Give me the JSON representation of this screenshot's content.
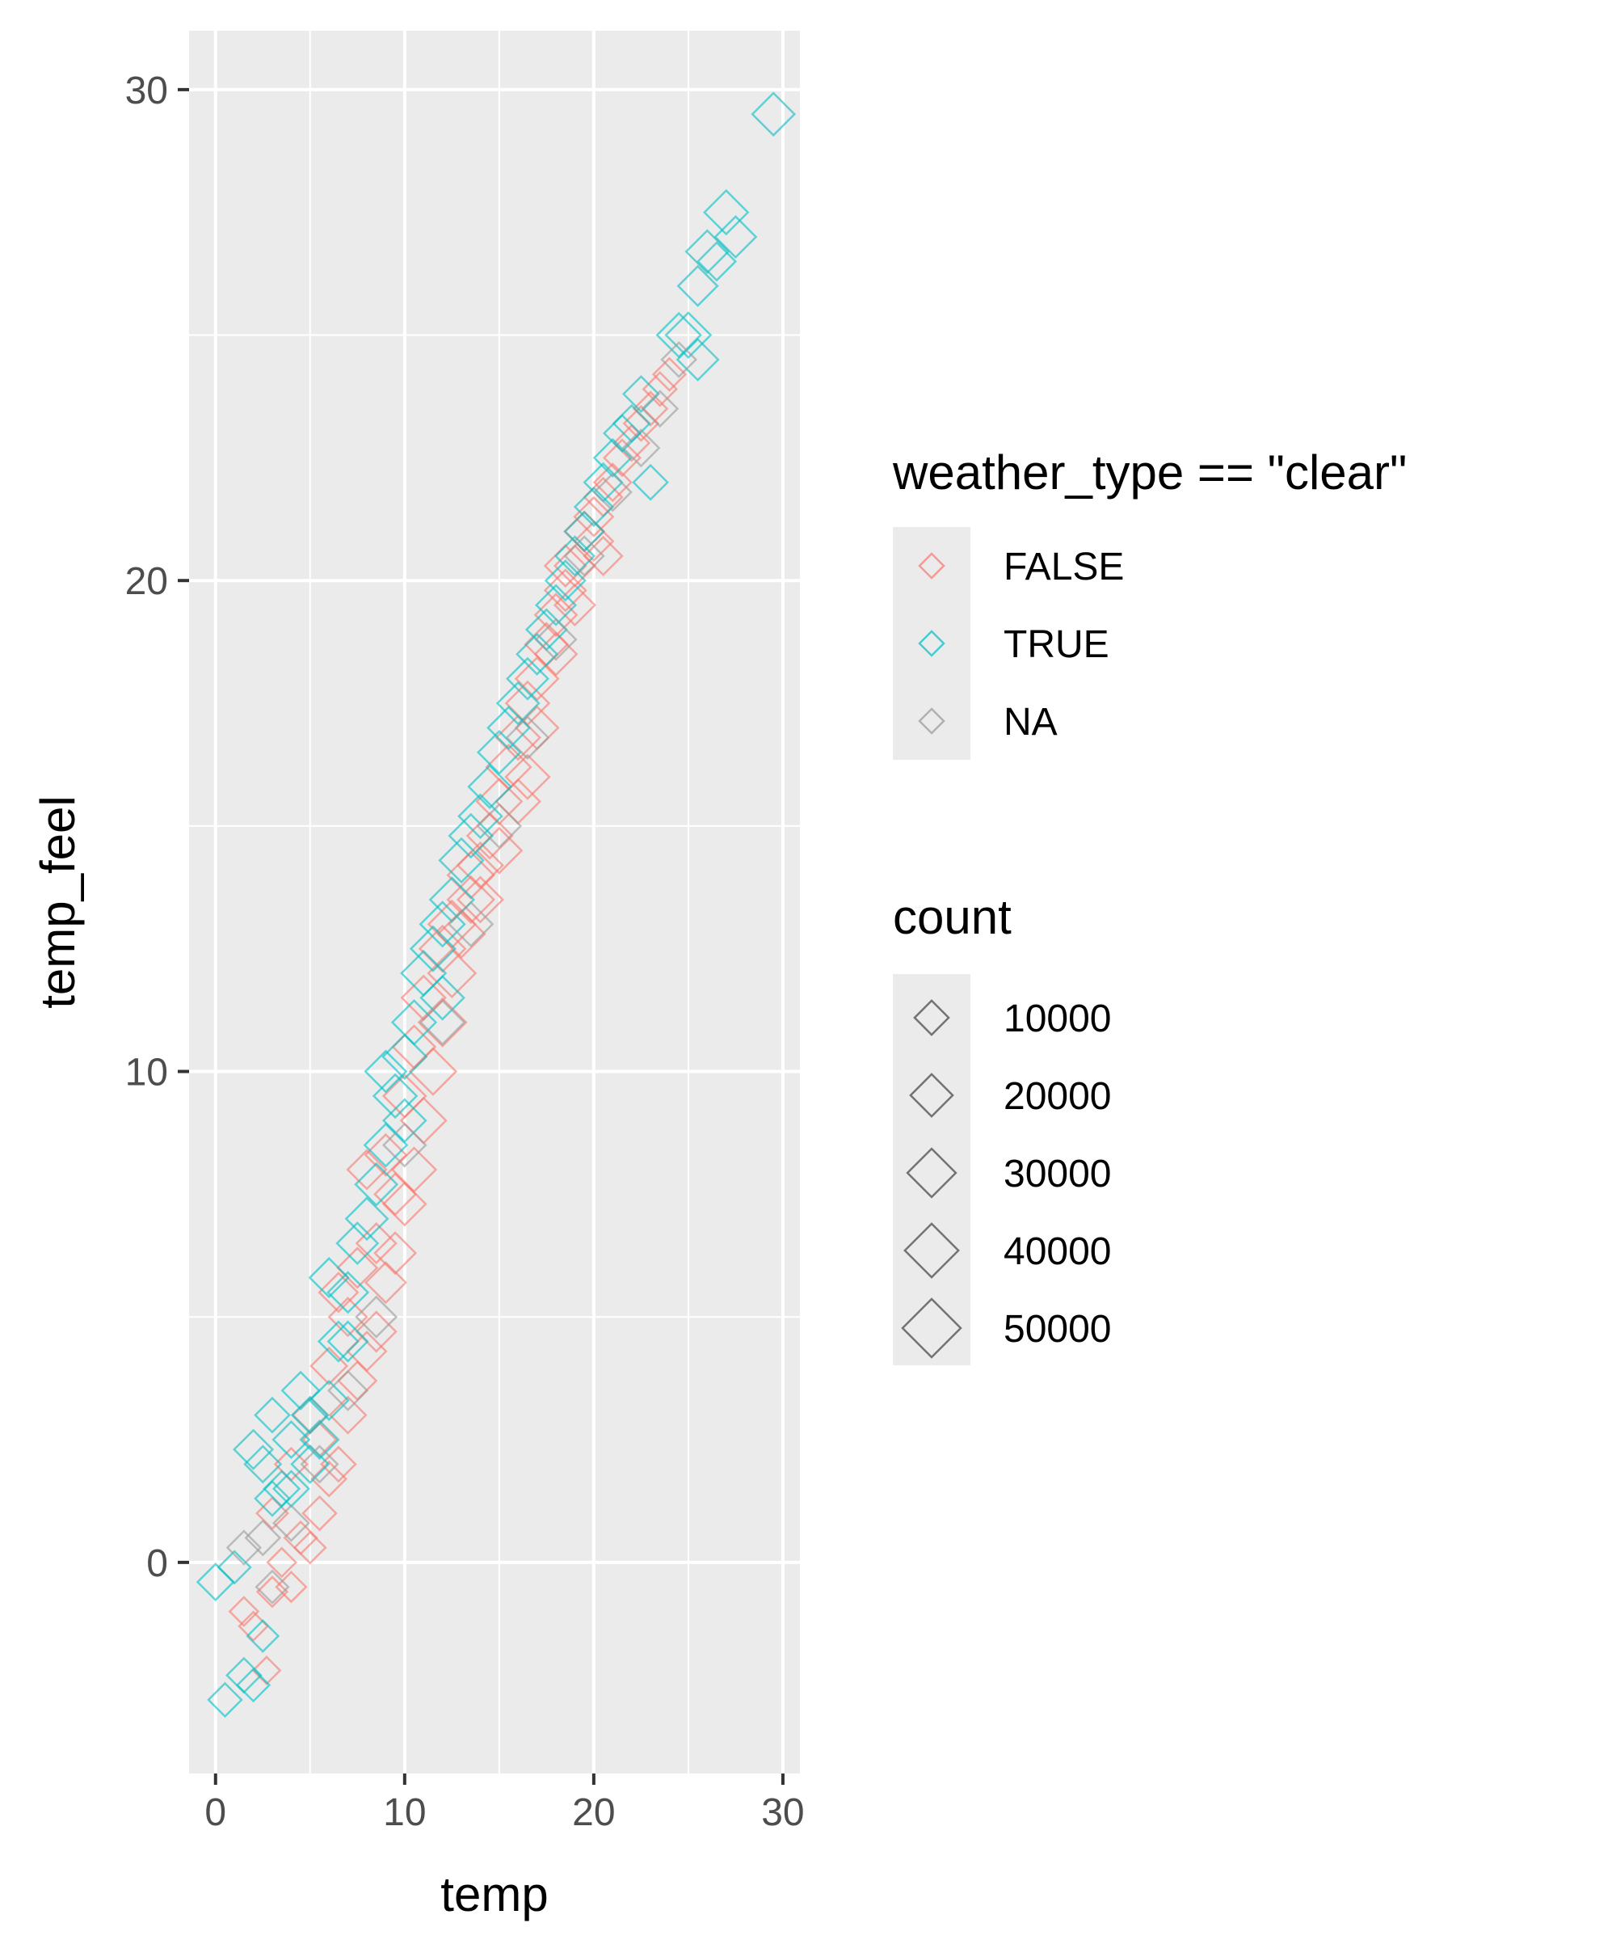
{
  "chart_data": {
    "type": "scatter",
    "xlabel": "temp",
    "ylabel": "temp_feel",
    "xlim": [
      -1.4,
      30.9
    ],
    "ylim": [
      -4.3,
      31.2
    ],
    "x_ticks": [
      "0",
      "10",
      "20",
      "30"
    ],
    "y_ticks": [
      "0",
      "10",
      "20",
      "30"
    ],
    "grid": true,
    "marker": "open-diamond",
    "color_legend": {
      "title": "weather_type == \"clear\"",
      "entries": [
        {
          "label": "FALSE",
          "color": "#F8766D"
        },
        {
          "label": "TRUE",
          "color": "#00BFC4"
        },
        {
          "label": "NA",
          "color": "#999999"
        }
      ]
    },
    "size_legend": {
      "title": "count",
      "entries": [
        "10000",
        "20000",
        "30000",
        "40000",
        "50000"
      ]
    },
    "series": [
      {
        "name": "FALSE",
        "color": "#F8766D",
        "points": [
          [
            1.5,
            -1.0,
            5000
          ],
          [
            2.0,
            -1.3,
            5000
          ],
          [
            2.7,
            -2.2,
            4000
          ],
          [
            3.0,
            -0.6,
            6000
          ],
          [
            3.5,
            0.0,
            5000
          ],
          [
            4.0,
            -0.5,
            6000
          ],
          [
            4.5,
            0.5,
            8000
          ],
          [
            5.0,
            0.3,
            7000
          ],
          [
            5.5,
            1.0,
            9000
          ],
          [
            6.0,
            1.7,
            10000
          ],
          [
            6.5,
            2.0,
            10000
          ],
          [
            7.0,
            3.0,
            12000
          ],
          [
            7.5,
            3.7,
            14000
          ],
          [
            8.0,
            4.3,
            15000
          ],
          [
            8.5,
            4.7,
            16000
          ],
          [
            9.0,
            5.7,
            17000
          ],
          [
            9.5,
            6.3,
            18000
          ],
          [
            10.0,
            7.3,
            20000
          ],
          [
            10.5,
            8.0,
            22000
          ],
          [
            11.0,
            9.0,
            24000
          ],
          [
            11.5,
            10.0,
            26000
          ],
          [
            12.0,
            11.0,
            28000
          ],
          [
            12.5,
            12.0,
            28000
          ],
          [
            13.0,
            12.8,
            27000
          ],
          [
            13.5,
            13.5,
            26000
          ],
          [
            14.0,
            14.2,
            24000
          ],
          [
            14.5,
            14.8,
            24000
          ],
          [
            15.0,
            15.5,
            24000
          ],
          [
            15.5,
            16.2,
            23000
          ],
          [
            16.0,
            16.8,
            22000
          ],
          [
            16.5,
            17.5,
            21000
          ],
          [
            17.0,
            18.0,
            20000
          ],
          [
            17.5,
            18.7,
            20000
          ],
          [
            18.0,
            19.3,
            19000
          ],
          [
            18.5,
            19.8,
            18000
          ],
          [
            19.0,
            20.3,
            17000
          ],
          [
            19.5,
            21.0,
            16000
          ],
          [
            20.0,
            21.3,
            15000
          ],
          [
            20.5,
            21.7,
            14000
          ],
          [
            21.0,
            22.0,
            13000
          ],
          [
            21.5,
            22.5,
            12000
          ],
          [
            22.0,
            22.8,
            11000
          ],
          [
            22.5,
            23.2,
            10000
          ],
          [
            23.0,
            23.5,
            9000
          ],
          [
            23.5,
            23.9,
            9000
          ],
          [
            24.0,
            24.2,
            8000
          ],
          [
            6.5,
            5.5,
            15000
          ],
          [
            7.5,
            6.0,
            16000
          ],
          [
            8.0,
            8.0,
            15000
          ],
          [
            9.0,
            8.3,
            18000
          ],
          [
            10.5,
            10.5,
            20000
          ],
          [
            11.0,
            11.5,
            22000
          ],
          [
            12.0,
            12.5,
            25000
          ],
          [
            14.0,
            13.5,
            24000
          ],
          [
            15.0,
            14.5,
            24000
          ],
          [
            16.0,
            15.5,
            22000
          ],
          [
            17.0,
            17.0,
            20000
          ],
          [
            18.0,
            18.5,
            19000
          ],
          [
            19.0,
            19.5,
            17000
          ],
          [
            20.0,
            20.8,
            15000
          ],
          [
            5.0,
            3.0,
            10000
          ],
          [
            6.0,
            4.0,
            12000
          ],
          [
            7.0,
            5.0,
            14000
          ],
          [
            8.5,
            6.5,
            16000
          ],
          [
            9.5,
            7.5,
            18000
          ],
          [
            4.0,
            2.0,
            8000
          ],
          [
            3.0,
            1.0,
            7000
          ],
          [
            5.5,
            2.5,
            9000
          ],
          [
            10.0,
            9.5,
            20000
          ],
          [
            12.5,
            13.0,
            27000
          ],
          [
            13.5,
            14.0,
            26000
          ],
          [
            16.5,
            16.0,
            22000
          ],
          [
            18.5,
            20.3,
            18000
          ],
          [
            20.5,
            20.5,
            14000
          ]
        ]
      },
      {
        "name": "TRUE",
        "color": "#00BFC4",
        "points": [
          [
            0.0,
            -0.4,
            12000
          ],
          [
            0.5,
            -2.8,
            9000
          ],
          [
            1.0,
            -0.1,
            8000
          ],
          [
            1.5,
            -2.3,
            10000
          ],
          [
            2.0,
            -2.5,
            8000
          ],
          [
            2.0,
            2.3,
            15000
          ],
          [
            2.5,
            2.0,
            12000
          ],
          [
            2.5,
            -1.5,
            7000
          ],
          [
            3.0,
            1.3,
            10000
          ],
          [
            3.5,
            1.5,
            11000
          ],
          [
            4.0,
            2.5,
            12000
          ],
          [
            4.5,
            3.5,
            13000
          ],
          [
            5.0,
            3.0,
            12000
          ],
          [
            5.5,
            2.5,
            14000
          ],
          [
            6.0,
            3.3,
            15000
          ],
          [
            6.5,
            4.5,
            16000
          ],
          [
            7.0,
            5.5,
            17000
          ],
          [
            7.5,
            6.5,
            18000
          ],
          [
            8.0,
            7.0,
            19000
          ],
          [
            8.5,
            7.7,
            19000
          ],
          [
            9.0,
            8.5,
            20000
          ],
          [
            9.5,
            9.5,
            21000
          ],
          [
            10.0,
            10.3,
            22000
          ],
          [
            10.5,
            11.0,
            22000
          ],
          [
            11.0,
            12.0,
            23000
          ],
          [
            11.5,
            12.5,
            23000
          ],
          [
            12.0,
            13.0,
            23000
          ],
          [
            12.5,
            13.5,
            22000
          ],
          [
            13.0,
            14.3,
            22000
          ],
          [
            13.5,
            14.8,
            21000
          ],
          [
            14.0,
            15.2,
            21000
          ],
          [
            14.5,
            15.8,
            20000
          ],
          [
            15.0,
            16.5,
            20000
          ],
          [
            15.5,
            17.0,
            19000
          ],
          [
            16.0,
            17.5,
            19000
          ],
          [
            16.5,
            18.0,
            18000
          ],
          [
            17.0,
            18.5,
            17000
          ],
          [
            17.5,
            19.0,
            17000
          ],
          [
            18.0,
            19.5,
            16000
          ],
          [
            18.5,
            20.0,
            16000
          ],
          [
            19.0,
            20.5,
            15000
          ],
          [
            19.5,
            21.0,
            15000
          ],
          [
            20.0,
            21.5,
            14000
          ],
          [
            20.5,
            22.0,
            14000
          ],
          [
            21.0,
            22.5,
            13000
          ],
          [
            21.5,
            23.0,
            12000
          ],
          [
            22.0,
            23.2,
            12000
          ],
          [
            22.5,
            23.8,
            11000
          ],
          [
            23.0,
            22.0,
            10000
          ],
          [
            24.5,
            25.0,
            22000
          ],
          [
            25.0,
            25.0,
            24000
          ],
          [
            25.5,
            24.5,
            18000
          ],
          [
            25.5,
            26.0,
            16000
          ],
          [
            26.0,
            26.7,
            20000
          ],
          [
            26.5,
            26.5,
            14000
          ],
          [
            27.0,
            27.5,
            22000
          ],
          [
            27.5,
            27.0,
            18000
          ],
          [
            29.5,
            29.5,
            20000
          ],
          [
            9.0,
            10.0,
            18000
          ],
          [
            10.0,
            9.0,
            20000
          ],
          [
            12.0,
            11.5,
            21000
          ],
          [
            6.0,
            5.8,
            15000
          ],
          [
            7.0,
            4.5,
            16000
          ],
          [
            5.0,
            2.0,
            13000
          ],
          [
            4.0,
            1.5,
            11000
          ],
          [
            3.0,
            3.0,
            10000
          ]
        ]
      },
      {
        "name": "NA",
        "color": "#999999",
        "points": [
          [
            1.5,
            0.3,
            9000
          ],
          [
            2.5,
            0.5,
            10000
          ],
          [
            3.0,
            -0.5,
            8000
          ],
          [
            4.0,
            0.8,
            11000
          ],
          [
            5.5,
            2.0,
            12000
          ],
          [
            7.0,
            3.5,
            15000
          ],
          [
            8.5,
            5.0,
            17000
          ],
          [
            10.0,
            8.5,
            20000
          ],
          [
            12.0,
            11.0,
            22000
          ],
          [
            13.5,
            13.0,
            22000
          ],
          [
            15.0,
            15.0,
            21000
          ],
          [
            16.5,
            16.8,
            19000
          ],
          [
            18.0,
            18.8,
            17000
          ],
          [
            19.5,
            20.5,
            15000
          ],
          [
            21.0,
            21.8,
            13000
          ],
          [
            22.5,
            22.7,
            12000
          ],
          [
            23.5,
            23.5,
            11000
          ],
          [
            24.5,
            24.5,
            10000
          ]
        ]
      }
    ]
  }
}
